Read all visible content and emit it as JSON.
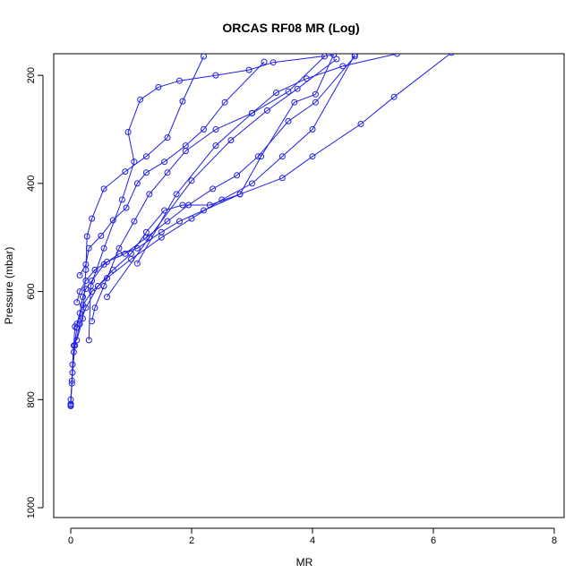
{
  "chart_data": {
    "type": "line",
    "title": "ORCAS RF08 MR (Log)",
    "xlabel": "MR",
    "ylabel": "Pressure (mbar)",
    "xlim": [
      0,
      8
    ],
    "ylim": [
      1000,
      160
    ],
    "y_reversed": true,
    "xticks": [
      0,
      2,
      4,
      6,
      8
    ],
    "yticks": [
      200,
      400,
      600,
      800,
      1000
    ],
    "grid": false,
    "legend": "none",
    "color": "#1f1fe6",
    "series": [
      {
        "x": [
          0.0,
          0.0,
          0.02,
          0.03,
          0.05,
          0.07,
          0.1,
          0.15,
          0.2,
          0.25,
          0.35,
          0.55,
          0.8,
          1.1,
          1.5,
          1.8,
          2.2,
          2.8,
          3.5,
          4.0,
          4.8,
          5.35,
          6.3
        ],
        "y": [
          812,
          800,
          770,
          735,
          700,
          665,
          660,
          640,
          610,
          595,
          580,
          550,
          530,
          520,
          490,
          470,
          450,
          420,
          390,
          350,
          290,
          240,
          158
        ]
      },
      {
        "x": [
          0.0,
          0.02,
          0.05,
          0.1,
          0.2,
          0.35,
          0.6,
          1.0,
          1.5,
          2.0,
          2.5,
          3.0,
          3.5,
          4.0,
          4.7
        ],
        "y": [
          810,
          765,
          712,
          667,
          625,
          600,
          575,
          540,
          500,
          465,
          430,
          400,
          350,
          300,
          162
        ]
      },
      {
        "x": [
          0.0,
          0.03,
          0.07,
          0.15,
          0.25,
          0.45,
          0.7,
          1.0,
          1.25,
          1.55,
          1.85,
          2.3,
          2.8,
          3.15,
          3.7,
          4.05,
          4.35
        ],
        "y": [
          808,
          750,
          700,
          660,
          630,
          590,
          560,
          530,
          490,
          450,
          440,
          440,
          420,
          350,
          250,
          235,
          162
        ]
      },
      {
        "x": [
          0.1,
          0.15,
          0.25,
          0.4,
          0.6,
          0.9,
          1.25,
          1.6,
          1.95,
          2.35,
          2.75,
          3.1,
          3.6,
          4.05,
          4.7
        ],
        "y": [
          620,
          600,
          580,
          560,
          545,
          530,
          500,
          470,
          440,
          410,
          385,
          350,
          285,
          250,
          165
        ]
      },
      {
        "x": [
          0.15,
          0.25,
          0.3,
          0.5,
          0.7,
          0.92,
          1.1,
          1.25,
          1.55,
          1.9,
          2.2,
          2.55,
          3.2
        ],
        "y": [
          570,
          550,
          520,
          497,
          468,
          445,
          400,
          380,
          360,
          330,
          300,
          250,
          175
        ]
      },
      {
        "x": [
          0.1,
          0.2,
          0.25,
          0.27,
          0.35,
          0.55,
          0.9,
          1.25,
          1.6,
          1.85,
          2.2
        ],
        "y": [
          690,
          650,
          560,
          498,
          465,
          410,
          378,
          350,
          315,
          248,
          165
        ]
      },
      {
        "x": [
          0.3,
          0.33,
          0.55,
          0.85,
          1.05,
          0.95,
          1.15,
          1.45,
          1.8,
          2.4,
          2.95,
          3.35,
          4.35
        ],
        "y": [
          690,
          590,
          520,
          430,
          360,
          305,
          245,
          222,
          210,
          200,
          190,
          176,
          162
        ]
      },
      {
        "x": [
          0.35,
          0.4,
          0.55,
          0.8,
          1.05,
          1.3,
          1.6,
          1.9,
          2.4,
          3.0,
          3.6,
          4.2
        ],
        "y": [
          655,
          630,
          590,
          520,
          470,
          420,
          380,
          340,
          300,
          270,
          230,
          165
        ]
      },
      {
        "x": [
          1.1,
          1.75,
          2.4,
          3.0,
          3.4,
          3.9,
          4.5,
          5.4
        ],
        "y": [
          548,
          420,
          330,
          270,
          232,
          206,
          183,
          160
        ]
      },
      {
        "x": [
          0.6,
          1.3,
          2.0,
          2.65,
          3.25,
          3.75,
          4.4
        ],
        "y": [
          610,
          500,
          395,
          320,
          265,
          225,
          170
        ]
      }
    ]
  }
}
